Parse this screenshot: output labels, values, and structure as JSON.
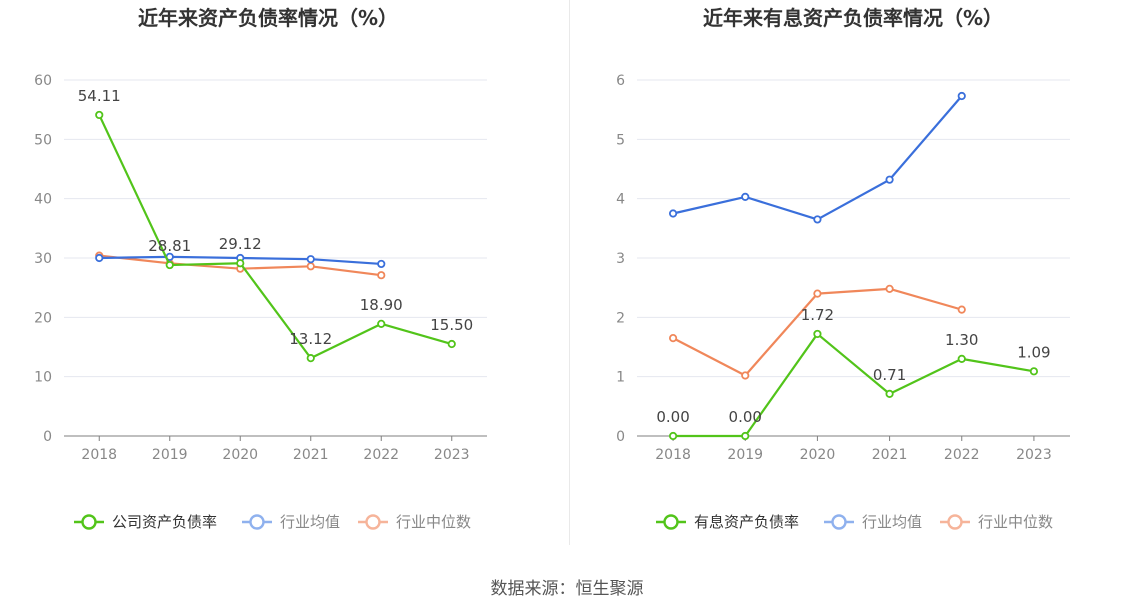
{
  "footer": {
    "source": "数据来源：恒生聚源"
  },
  "chart_data": [
    {
      "type": "line",
      "title": "近年来资产负债率情况（%）",
      "categories": [
        "2018",
        "2019",
        "2020",
        "2021",
        "2022",
        "2023"
      ],
      "ylim": [
        0,
        60
      ],
      "yticks": [
        0,
        10,
        20,
        30,
        40,
        50,
        60
      ],
      "grid": true,
      "legend_position": "bottom",
      "series": [
        {
          "name": "公司资产负债率",
          "color": "#52c41a",
          "labeled": true,
          "values": [
            54.11,
            28.81,
            29.12,
            13.12,
            18.9,
            15.5
          ],
          "labels": [
            "54.11",
            "28.81",
            "29.12",
            "13.12",
            "18.90",
            "15.50"
          ]
        },
        {
          "name": "行业均值",
          "color": "#3a6fdb",
          "labeled": false,
          "values": [
            30.0,
            30.2,
            30.0,
            29.8,
            29.0,
            null
          ]
        },
        {
          "name": "行业中位数",
          "color": "#f0875a",
          "labeled": false,
          "values": [
            30.4,
            29.1,
            28.2,
            28.6,
            27.1,
            null
          ]
        }
      ]
    },
    {
      "type": "line",
      "title": "近年来有息资产负债率情况（%）",
      "categories": [
        "2018",
        "2019",
        "2020",
        "2021",
        "2022",
        "2023"
      ],
      "ylim": [
        0,
        6
      ],
      "yticks": [
        0,
        1,
        2,
        3,
        4,
        5,
        6
      ],
      "grid": true,
      "legend_position": "bottom",
      "series": [
        {
          "name": "有息资产负债率",
          "color": "#52c41a",
          "labeled": true,
          "values": [
            0.0,
            0.0,
            1.72,
            0.71,
            1.3,
            1.09
          ],
          "labels": [
            "0.00",
            "0.00",
            "1.72",
            "0.71",
            "1.30",
            "1.09"
          ]
        },
        {
          "name": "行业均值",
          "color": "#3a6fdb",
          "labeled": false,
          "values": [
            3.75,
            4.03,
            3.65,
            4.32,
            5.73,
            null
          ]
        },
        {
          "name": "行业中位数",
          "color": "#f0875a",
          "labeled": false,
          "values": [
            1.65,
            1.02,
            2.4,
            2.48,
            2.13,
            null
          ]
        }
      ]
    }
  ]
}
